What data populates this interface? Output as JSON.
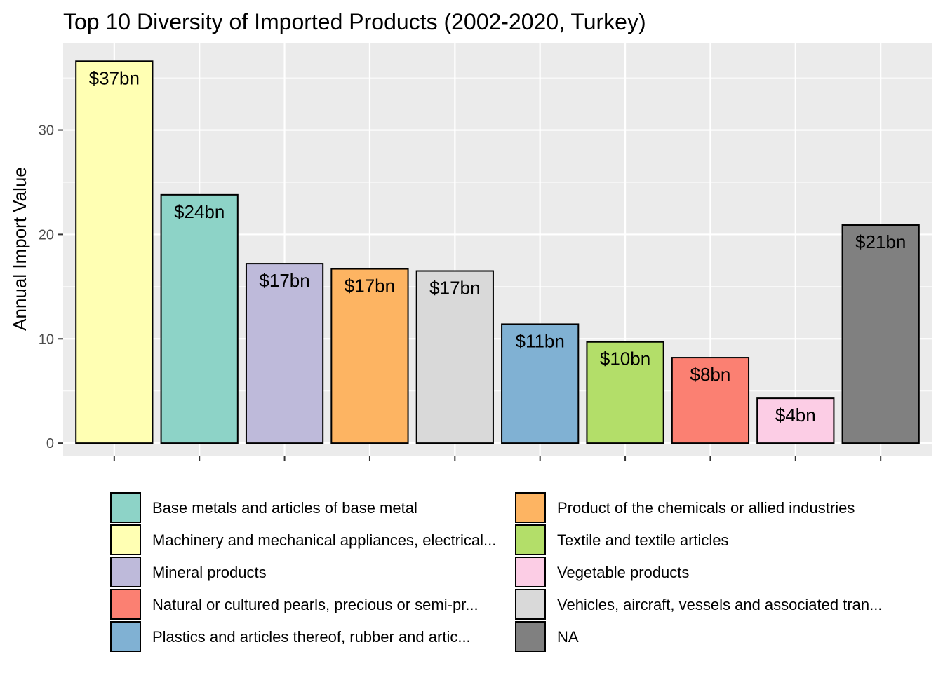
{
  "chart_data": {
    "type": "bar",
    "title": "Top 10 Diversity of Imported Products (2002-2020, Turkey)",
    "xlabel": "",
    "ylabel": "Annual Import Value",
    "ylim": [
      -1.2,
      38.3
    ],
    "yticks": [
      0,
      10,
      20,
      30
    ],
    "grid": true,
    "legend_position": "bottom",
    "categories": [
      "Machinery and mechanical appliances, electrical...",
      "Base metals and articles of base metal",
      "Mineral products",
      "Product of the chemicals or allied industries",
      "Vehicles, aircraft, vessels and associated tran...",
      "Plastics and articles thereof, rubber and artic...",
      "Textile and textile articles",
      "Natural or cultured pearls, precious or semi-pr...",
      "Vegetable products",
      "NA"
    ],
    "values": [
      36.6,
      23.8,
      17.2,
      16.7,
      16.5,
      11.4,
      9.7,
      8.2,
      4.3,
      20.9
    ],
    "labels": [
      "$37bn",
      "$24bn",
      "$17bn",
      "$17bn",
      "$17bn",
      "$11bn",
      "$10bn",
      "$8bn",
      "$4bn",
      "$21bn"
    ],
    "colors": [
      "#FFFFB3",
      "#8DD3C7",
      "#BEBADA",
      "#FDB462",
      "#D9D9D9",
      "#80B1D3",
      "#B3DE69",
      "#FB8072",
      "#FCCDE5",
      "#808080"
    ],
    "legend": {
      "left": [
        {
          "label": "Base metals and articles of base metal",
          "color": "#8DD3C7"
        },
        {
          "label": "Machinery and mechanical appliances, electrical...",
          "color": "#FFFFB3"
        },
        {
          "label": "Mineral products",
          "color": "#BEBADA"
        },
        {
          "label": "Natural or cultured pearls, precious or semi-pr...",
          "color": "#FB8072"
        },
        {
          "label": "Plastics and articles thereof, rubber and artic...",
          "color": "#80B1D3"
        }
      ],
      "right": [
        {
          "label": "Product of the chemicals or allied industries",
          "color": "#FDB462"
        },
        {
          "label": "Textile and textile articles",
          "color": "#B3DE69"
        },
        {
          "label": "Vegetable products",
          "color": "#FCCDE5"
        },
        {
          "label": "Vehicles, aircraft, vessels and associated tran...",
          "color": "#D9D9D9"
        },
        {
          "label": "NA",
          "color": "#808080"
        }
      ]
    },
    "panel_background": "#EBEBEB",
    "grid_color": "#FFFFFF"
  }
}
